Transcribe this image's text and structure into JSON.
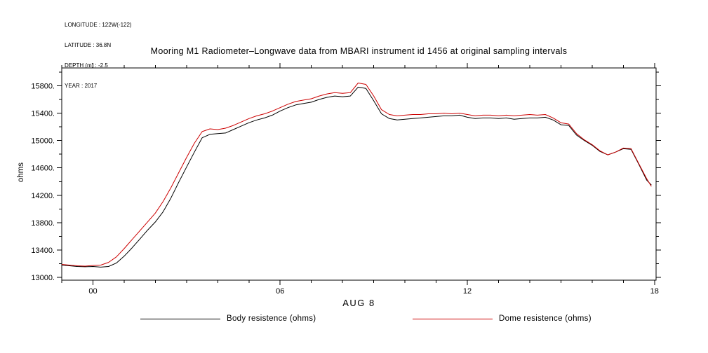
{
  "meta": {
    "longitude": "LONGITUDE : 122W(-122)",
    "latitude": "LATITUDE : 36.8N",
    "depth": "DEPTH (m) : -2.5",
    "year": "YEAR : 2017"
  },
  "chart_data": {
    "type": "line",
    "title": "Mooring M1 Radiometer–Longwave data from MBARI instrument id 1456 at original sampling intervals",
    "xlabel": "AUG 8",
    "ylabel": "ohms",
    "xlim": [
      -1.0,
      18.05
    ],
    "ylim": [
      12960,
      16060
    ],
    "grid": false,
    "legend_position": "bottom",
    "x_ticks": {
      "values": [
        0,
        6,
        12,
        18
      ],
      "labels": [
        "00",
        "06",
        "12",
        "18"
      ]
    },
    "y_ticks": {
      "values": [
        13000,
        13400,
        13800,
        14200,
        14600,
        15000,
        15400,
        15800
      ],
      "labels": [
        "13000.",
        "13400.",
        "13800.",
        "14200.",
        "14600.",
        "15000.",
        "15400.",
        "15800."
      ]
    },
    "x": [
      -1,
      -0.75,
      -0.5,
      -0.25,
      0,
      0.25,
      0.5,
      0.75,
      1,
      1.25,
      1.5,
      1.75,
      2,
      2.25,
      2.5,
      2.75,
      3,
      3.25,
      3.5,
      3.75,
      4,
      4.25,
      4.5,
      4.75,
      5,
      5.25,
      5.5,
      5.75,
      6,
      6.25,
      6.5,
      6.75,
      7,
      7.25,
      7.5,
      7.75,
      8,
      8.25,
      8.5,
      8.75,
      9,
      9.25,
      9.5,
      9.75,
      10,
      10.25,
      10.5,
      10.75,
      11,
      11.25,
      11.5,
      11.75,
      12,
      12.25,
      12.5,
      12.75,
      13,
      13.25,
      13.5,
      13.75,
      14,
      14.25,
      14.5,
      14.75,
      15,
      15.25,
      15.5,
      15.75,
      16,
      16.25,
      16.5,
      16.75,
      17,
      17.25,
      17.5,
      17.75,
      17.9
    ],
    "series": [
      {
        "id": "body",
        "name": "Body resistence (ohms)",
        "color": "#000000",
        "values": [
          13180,
          13170,
          13160,
          13155,
          13160,
          13150,
          13160,
          13210,
          13310,
          13430,
          13560,
          13690,
          13810,
          13960,
          14160,
          14390,
          14610,
          14830,
          15040,
          15090,
          15100,
          15110,
          15160,
          15210,
          15260,
          15300,
          15330,
          15370,
          15430,
          15480,
          15520,
          15540,
          15560,
          15600,
          15630,
          15650,
          15640,
          15650,
          15780,
          15760,
          15580,
          15390,
          15320,
          15300,
          15310,
          15320,
          15330,
          15340,
          15350,
          15360,
          15360,
          15370,
          15340,
          15320,
          15330,
          15330,
          15320,
          15330,
          15310,
          15320,
          15330,
          15330,
          15340,
          15300,
          15230,
          15220,
          15080,
          15000,
          14930,
          14840,
          14790,
          14830,
          14880,
          14870,
          14650,
          14420,
          14350
        ]
      },
      {
        "id": "dome",
        "name": "Dome resistence (ohms)",
        "color": "#cc0000",
        "values": [
          13190,
          13180,
          13170,
          13165,
          13175,
          13180,
          13220,
          13300,
          13420,
          13550,
          13680,
          13810,
          13940,
          14110,
          14310,
          14530,
          14750,
          14960,
          15130,
          15170,
          15160,
          15180,
          15220,
          15270,
          15320,
          15360,
          15390,
          15430,
          15480,
          15530,
          15570,
          15590,
          15610,
          15650,
          15680,
          15700,
          15690,
          15700,
          15840,
          15820,
          15650,
          15450,
          15380,
          15360,
          15370,
          15380,
          15380,
          15390,
          15390,
          15400,
          15390,
          15400,
          15380,
          15360,
          15370,
          15370,
          15360,
          15370,
          15360,
          15370,
          15380,
          15370,
          15380,
          15330,
          15260,
          15240,
          15100,
          15010,
          14940,
          14850,
          14790,
          14830,
          14890,
          14880,
          14660,
          14440,
          14330
        ]
      }
    ]
  }
}
